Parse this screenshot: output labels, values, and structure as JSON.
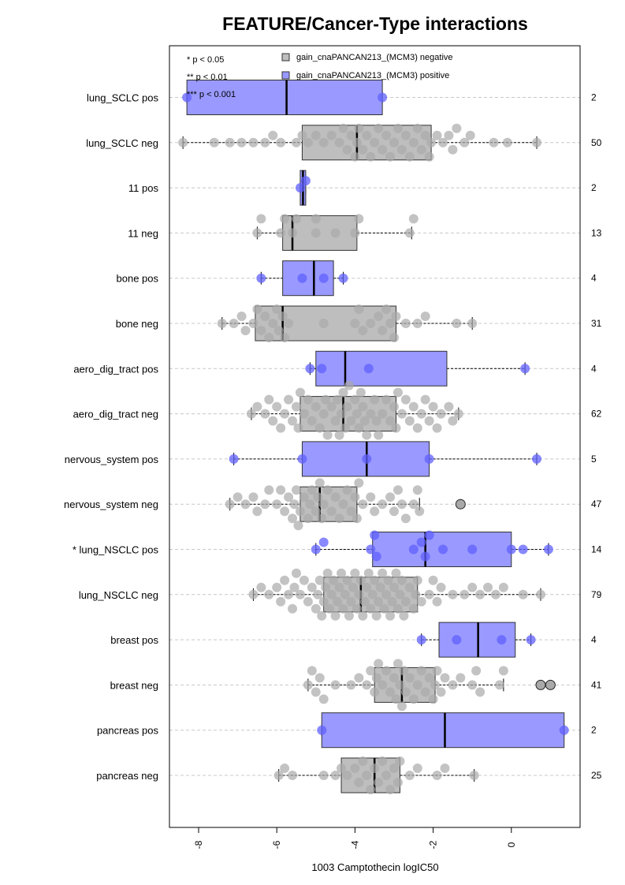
{
  "chart_data": {
    "type": "box",
    "title": "FEATURE/Cancer-Type interactions",
    "xlabel": "1003 Camptothecin logIC50",
    "ylabel": "",
    "xlim": [
      -8.5,
      1.5
    ],
    "x_ticks": [
      {
        "value": -8,
        "label": "-8"
      },
      {
        "value": -6,
        "label": "-6"
      },
      {
        "value": -4,
        "label": "-4"
      },
      {
        "value": -2,
        "label": "-2"
      },
      {
        "value": 0,
        "label": "0"
      }
    ],
    "grid": "horizontal dashed",
    "legend": {
      "significance": [
        "* p < 0.05",
        "** p < 0.01",
        "*** p < 0.001"
      ],
      "groups": [
        {
          "label": "gain_cnaPANCAN213_(MCM3) negative",
          "color": "#bebebe"
        },
        {
          "label": "gain_cnaPANCAN213_(MCM3) positive",
          "color": "#9999ff"
        }
      ]
    },
    "colors": {
      "neg_box": "#bebebe",
      "pos_box": "#9999ff",
      "neg_point": "#a9a9a9",
      "pos_point": "#6060ff",
      "grid": "#c8c8c8"
    },
    "groups": [
      {
        "label": "lung_SCLC pos",
        "n": "2",
        "status": "pos",
        "min": -8.3,
        "q1": -8.3,
        "median": -5.75,
        "q3": -3.3,
        "max": -3.3,
        "points": [
          -8.3,
          -3.3
        ],
        "outliers": []
      },
      {
        "label": "lung_SCLC neg",
        "n": "50",
        "status": "neg",
        "min": -8.4,
        "q1": -5.35,
        "median": -3.95,
        "q3": -2.05,
        "max": 0.65,
        "points": [
          -8.4,
          -7.6,
          -7.2,
          -6.9,
          -6.6,
          -6.3,
          -6.1,
          -5.9,
          -5.5,
          -5.35,
          -5.2,
          -5.0,
          -4.8,
          -4.6,
          -4.4,
          -4.3,
          -4.2,
          -4.1,
          -4.0,
          -3.95,
          -3.9,
          -3.8,
          -3.7,
          -3.6,
          -3.5,
          -3.4,
          -3.3,
          -3.2,
          -3.1,
          -3.0,
          -2.9,
          -2.8,
          -2.7,
          -2.6,
          -2.5,
          -2.4,
          -2.3,
          -2.2,
          -2.1,
          -2.05,
          -1.9,
          -1.75,
          -1.6,
          -1.5,
          -1.4,
          -1.2,
          -1.05,
          -0.45,
          -0.1,
          0.65
        ],
        "outliers": []
      },
      {
        "label": "11 pos",
        "n": "2",
        "status": "pos",
        "min": -5.4,
        "q1": -5.4,
        "median": -5.33,
        "q3": -5.26,
        "max": -5.26,
        "points": [
          -5.4,
          -5.26
        ],
        "outliers": []
      },
      {
        "label": "11 neg",
        "n": "13",
        "status": "neg",
        "min": -6.5,
        "q1": -5.85,
        "median": -5.6,
        "q3": -3.95,
        "max": -2.55,
        "points": [
          -6.5,
          -6.4,
          -5.9,
          -5.8,
          -5.6,
          -5.5,
          -5.0,
          -5.0,
          -4.5,
          -4.0,
          -3.9,
          -2.6,
          -2.5
        ],
        "outliers": []
      },
      {
        "label": "bone pos",
        "n": "4",
        "status": "pos",
        "min": -6.4,
        "q1": -5.85,
        "median": -5.05,
        "q3": -4.55,
        "max": -4.3,
        "points": [
          -6.4,
          -5.35,
          -4.8,
          -4.3
        ],
        "outliers": []
      },
      {
        "label": "bone neg",
        "n": "31",
        "status": "neg",
        "min": -7.4,
        "q1": -6.55,
        "median": -5.85,
        "q3": -2.95,
        "max": -1.0,
        "points": [
          -7.4,
          -7.1,
          -6.9,
          -6.8,
          -6.6,
          -6.5,
          -6.4,
          -6.3,
          -6.2,
          -6.1,
          -6.0,
          -5.95,
          -5.85,
          -5.8,
          -5.7,
          -4.8,
          -4.0,
          -3.9,
          -3.8,
          -3.6,
          -3.4,
          -3.3,
          -3.2,
          -3.1,
          -3.0,
          -2.95,
          -2.7,
          -2.4,
          -2.2,
          -1.4,
          -1.0
        ],
        "outliers": []
      },
      {
        "label": "aero_dig_tract pos",
        "n": "4",
        "status": "pos",
        "min": -5.15,
        "q1": -5.0,
        "median": -4.25,
        "q3": -1.65,
        "max": 0.35,
        "points": [
          -5.15,
          -4.85,
          -3.65,
          0.35
        ],
        "outliers": []
      },
      {
        "label": "aero_dig_tract neg",
        "n": "62",
        "status": "neg",
        "min": -6.65,
        "q1": -5.4,
        "median": -4.3,
        "q3": -2.95,
        "max": -1.35,
        "points": [
          -6.65,
          -6.5,
          -6.3,
          -6.2,
          -6.1,
          -6.0,
          -5.9,
          -5.8,
          -5.7,
          -5.6,
          -5.5,
          -5.45,
          -5.4,
          -5.3,
          -5.2,
          -5.1,
          -5.0,
          -4.9,
          -4.8,
          -4.75,
          -4.7,
          -4.6,
          -4.5,
          -4.45,
          -4.4,
          -4.35,
          -4.3,
          -4.25,
          -4.2,
          -4.15,
          -4.1,
          -4.0,
          -3.95,
          -3.9,
          -3.85,
          -3.8,
          -3.75,
          -3.7,
          -3.6,
          -3.5,
          -3.45,
          -3.4,
          -3.3,
          -3.2,
          -3.1,
          -3.0,
          -2.95,
          -2.9,
          -2.8,
          -2.7,
          -2.6,
          -2.5,
          -2.4,
          -2.3,
          -2.2,
          -2.1,
          -2.0,
          -1.9,
          -1.8,
          -1.6,
          -1.5,
          -1.35
        ],
        "outliers": []
      },
      {
        "label": "nervous_system pos",
        "n": "5",
        "status": "pos",
        "min": -7.1,
        "q1": -5.35,
        "median": -3.7,
        "q3": -2.1,
        "max": 0.65,
        "points": [
          -7.1,
          -5.35,
          -3.7,
          -2.1,
          0.65
        ],
        "outliers": []
      },
      {
        "label": "nervous_system neg",
        "n": "47",
        "status": "neg",
        "min": -7.2,
        "q1": -5.4,
        "median": -4.9,
        "q3": -3.95,
        "max": -2.35,
        "points": [
          -7.2,
          -7.0,
          -6.8,
          -6.6,
          -6.5,
          -6.3,
          -6.2,
          -6.0,
          -5.9,
          -5.8,
          -5.7,
          -5.6,
          -5.55,
          -5.5,
          -5.45,
          -5.4,
          -5.3,
          -5.2,
          -5.15,
          -5.1,
          -5.0,
          -4.95,
          -4.9,
          -4.85,
          -4.8,
          -4.7,
          -4.6,
          -4.5,
          -4.4,
          -4.3,
          -4.2,
          -4.1,
          -4.0,
          -3.95,
          -3.9,
          -3.8,
          -3.6,
          -3.5,
          -3.3,
          -3.1,
          -3.0,
          -2.9,
          -2.8,
          -2.7,
          -2.5,
          -2.4,
          -2.35
        ],
        "outliers": [
          -1.3
        ]
      },
      {
        "label": "* lung_NSCLC pos",
        "n": "14",
        "status": "pos",
        "min": -5.0,
        "q1": -3.55,
        "median": -2.2,
        "q3": 0.0,
        "max": 0.95,
        "points": [
          -5.0,
          -4.8,
          -3.6,
          -3.5,
          -3.45,
          -2.5,
          -2.3,
          -2.2,
          -2.1,
          -1.75,
          -1.0,
          0.0,
          0.3,
          0.95
        ],
        "outliers": []
      },
      {
        "label": "lung_NSCLC neg",
        "n": "79",
        "status": "neg",
        "min": -6.6,
        "q1": -4.8,
        "median": -3.85,
        "q3": -2.4,
        "max": 0.75,
        "points": [
          -6.6,
          -6.4,
          -6.2,
          -6.0,
          -5.9,
          -5.8,
          -5.7,
          -5.6,
          -5.55,
          -5.5,
          -5.4,
          -5.3,
          -5.2,
          -5.1,
          -5.0,
          -4.95,
          -4.9,
          -4.85,
          -4.8,
          -4.75,
          -4.7,
          -4.65,
          -4.6,
          -4.55,
          -4.5,
          -4.45,
          -4.4,
          -4.35,
          -4.3,
          -4.25,
          -4.2,
          -4.15,
          -4.1,
          -4.05,
          -4.0,
          -3.95,
          -3.9,
          -3.85,
          -3.8,
          -3.75,
          -3.7,
          -3.65,
          -3.6,
          -3.55,
          -3.5,
          -3.45,
          -3.4,
          -3.35,
          -3.3,
          -3.25,
          -3.2,
          -3.15,
          -3.1,
          -3.05,
          -3.0,
          -2.95,
          -2.9,
          -2.85,
          -2.8,
          -2.75,
          -2.7,
          -2.6,
          -2.5,
          -2.45,
          -2.4,
          -2.3,
          -2.1,
          -2.0,
          -1.9,
          -1.8,
          -1.5,
          -1.2,
          -1.0,
          -0.8,
          -0.6,
          -0.4,
          -0.2,
          0.3,
          0.75
        ],
        "outliers": []
      },
      {
        "label": "breast pos",
        "n": "4",
        "status": "pos",
        "min": -2.3,
        "q1": -1.85,
        "median": -0.85,
        "q3": 0.1,
        "max": 0.5,
        "points": [
          -2.3,
          -1.4,
          -0.25,
          0.5
        ],
        "outliers": []
      },
      {
        "label": "breast neg",
        "n": "41",
        "status": "neg",
        "min": -5.2,
        "q1": -3.5,
        "median": -2.8,
        "q3": -1.95,
        "max": -0.2,
        "points": [
          -5.2,
          -5.1,
          -5.0,
          -4.9,
          -4.8,
          -4.5,
          -4.1,
          -3.9,
          -3.7,
          -3.6,
          -3.5,
          -3.45,
          -3.4,
          -3.3,
          -3.2,
          -3.1,
          -3.0,
          -2.95,
          -2.9,
          -2.85,
          -2.8,
          -2.75,
          -2.7,
          -2.6,
          -2.5,
          -2.4,
          -2.3,
          -2.2,
          -2.1,
          -2.0,
          -1.95,
          -1.9,
          -1.8,
          -1.7,
          -1.5,
          -1.3,
          -1.0,
          -0.9,
          -0.8,
          -0.3,
          -0.2
        ],
        "outliers": [
          0.75,
          1.0
        ]
      },
      {
        "label": "pancreas pos",
        "n": "2",
        "status": "pos",
        "min": -4.85,
        "q1": -4.85,
        "median": -1.7,
        "q3": 1.35,
        "max": 1.35,
        "points": [
          -4.85,
          1.35
        ],
        "outliers": []
      },
      {
        "label": "pancreas neg",
        "n": "25",
        "status": "neg",
        "min": -5.95,
        "q1": -4.35,
        "median": -3.5,
        "q3": -2.85,
        "max": -0.95,
        "points": [
          -5.95,
          -5.8,
          -5.6,
          -4.8,
          -4.5,
          -4.35,
          -4.2,
          -4.0,
          -3.9,
          -3.8,
          -3.7,
          -3.6,
          -3.5,
          -3.4,
          -3.3,
          -3.2,
          -3.1,
          -3.0,
          -2.9,
          -2.85,
          -2.6,
          -2.4,
          -1.9,
          -1.7,
          -0.95
        ],
        "outliers": []
      }
    ]
  }
}
